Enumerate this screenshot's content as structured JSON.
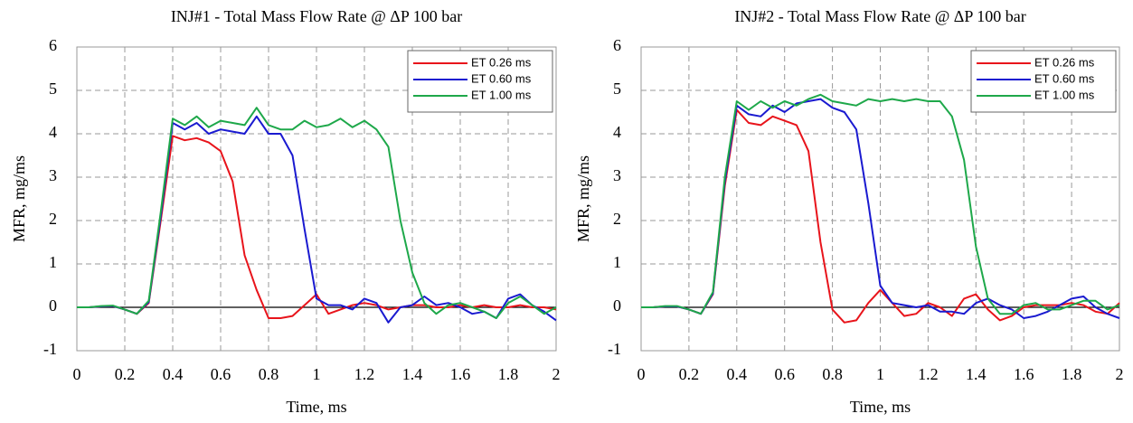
{
  "chart_data": [
    {
      "type": "line",
      "title": "INJ#1 - Total Mass Flow Rate @ ΔP 100 bar",
      "x_label": "Time, ms",
      "y_label": "MFR, mg/ms",
      "x": [
        0,
        0.05,
        0.1,
        0.15,
        0.2,
        0.25,
        0.3,
        0.35,
        0.4,
        0.45,
        0.5,
        0.55,
        0.6,
        0.65,
        0.7,
        0.75,
        0.8,
        0.85,
        0.9,
        0.95,
        1,
        1.05,
        1.1,
        1.15,
        1.2,
        1.25,
        1.3,
        1.35,
        1.4,
        1.45,
        1.5,
        1.55,
        1.6,
        1.65,
        1.7,
        1.75,
        1.8,
        1.85,
        1.9,
        1.95,
        2
      ],
      "series": [
        {
          "name": "ET 0.26 ms",
          "color": "#e8141b",
          "values": [
            0,
            0,
            0.02,
            0.03,
            -0.05,
            -0.15,
            0.1,
            2.0,
            3.95,
            3.85,
            3.9,
            3.8,
            3.6,
            2.9,
            1.2,
            0.4,
            -0.25,
            -0.25,
            -0.2,
            0.05,
            0.3,
            -0.15,
            -0.05,
            0.05,
            0.1,
            0.05,
            -0.05,
            0,
            0.05,
            0.05,
            0,
            0,
            0.05,
            0,
            0.05,
            0,
            0,
            0.05,
            0,
            0,
            -0.05
          ]
        },
        {
          "name": "ET 0.60 ms",
          "color": "#1a1ad0",
          "values": [
            0,
            0,
            0.02,
            0.03,
            -0.05,
            -0.15,
            0.12,
            2.1,
            4.25,
            4.1,
            4.25,
            4.0,
            4.1,
            4.05,
            4.0,
            4.4,
            4.0,
            4.0,
            3.5,
            1.8,
            0.2,
            0.05,
            0.05,
            -0.05,
            0.2,
            0.1,
            -0.35,
            0,
            0.05,
            0.25,
            0.05,
            0.1,
            0,
            -0.15,
            -0.1,
            -0.25,
            0.2,
            0.3,
            0.05,
            -0.1,
            -0.3
          ]
        },
        {
          "name": "ET 1.00 ms",
          "color": "#1ea84a",
          "values": [
            0,
            0,
            0.03,
            0.04,
            -0.05,
            -0.15,
            0.15,
            2.2,
            4.35,
            4.2,
            4.4,
            4.15,
            4.3,
            4.25,
            4.2,
            4.6,
            4.2,
            4.1,
            4.1,
            4.3,
            4.15,
            4.2,
            4.35,
            4.15,
            4.3,
            4.1,
            3.7,
            2.0,
            0.8,
            0.1,
            -0.15,
            0.05,
            0.1,
            0,
            -0.1,
            -0.25,
            0.1,
            0.25,
            0.05,
            -0.15,
            0
          ]
        }
      ],
      "xlim": [
        0,
        2
      ],
      "xticks": [
        0,
        0.2,
        0.4,
        0.6,
        0.8,
        1,
        1.2,
        1.4,
        1.6,
        1.8,
        2
      ],
      "ylim": [
        -1,
        6
      ],
      "yticks": [
        -1,
        0,
        1,
        2,
        3,
        4,
        5,
        6
      ],
      "grid": true,
      "legend": "upper right"
    },
    {
      "type": "line",
      "title": "INJ#2 - Total Mass Flow Rate @ ΔP 100 bar",
      "x_label": "Time, ms",
      "y_label": "MFR, mg/ms",
      "x": [
        0,
        0.05,
        0.1,
        0.15,
        0.2,
        0.25,
        0.3,
        0.35,
        0.4,
        0.45,
        0.5,
        0.55,
        0.6,
        0.65,
        0.7,
        0.75,
        0.8,
        0.85,
        0.9,
        0.95,
        1,
        1.05,
        1.1,
        1.15,
        1.2,
        1.25,
        1.3,
        1.35,
        1.4,
        1.45,
        1.5,
        1.55,
        1.6,
        1.65,
        1.7,
        1.75,
        1.8,
        1.85,
        1.9,
        1.95,
        2
      ],
      "series": [
        {
          "name": "ET 0.26 ms",
          "color": "#e8141b",
          "values": [
            0,
            0,
            0.02,
            0.02,
            -0.05,
            -0.15,
            0.3,
            2.8,
            4.55,
            4.25,
            4.2,
            4.4,
            4.3,
            4.2,
            3.6,
            1.5,
            -0.05,
            -0.35,
            -0.3,
            0.1,
            0.4,
            0.1,
            -0.2,
            -0.15,
            0.1,
            0,
            -0.2,
            0.2,
            0.3,
            -0.05,
            -0.3,
            -0.2,
            0,
            0.05,
            0.05,
            0.05,
            0.1,
            0.05,
            -0.1,
            -0.15,
            0.1
          ]
        },
        {
          "name": "ET 0.60 ms",
          "color": "#1a1ad0",
          "values": [
            0,
            0,
            0.02,
            0.02,
            -0.05,
            -0.15,
            0.32,
            2.9,
            4.65,
            4.45,
            4.4,
            4.65,
            4.5,
            4.7,
            4.75,
            4.8,
            4.6,
            4.5,
            4.1,
            2.4,
            0.5,
            0.1,
            0.05,
            0,
            0.05,
            -0.1,
            -0.1,
            -0.15,
            0.1,
            0.2,
            0.05,
            -0.05,
            -0.25,
            -0.2,
            -0.1,
            0.05,
            0.2,
            0.25,
            0,
            -0.15,
            -0.25
          ]
        },
        {
          "name": "ET 1.00 ms",
          "color": "#1ea84a",
          "values": [
            0,
            0,
            0.03,
            0.03,
            -0.05,
            -0.15,
            0.35,
            3.0,
            4.75,
            4.55,
            4.75,
            4.6,
            4.75,
            4.65,
            4.8,
            4.9,
            4.75,
            4.7,
            4.65,
            4.8,
            4.75,
            4.8,
            4.75,
            4.8,
            4.75,
            4.75,
            4.4,
            3.4,
            1.4,
            0.2,
            -0.15,
            -0.15,
            0.05,
            0.1,
            -0.05,
            -0.05,
            0.05,
            0.15,
            0.15,
            -0.05,
            0.05
          ]
        }
      ],
      "xlim": [
        0,
        2
      ],
      "xticks": [
        0,
        0.2,
        0.4,
        0.6,
        0.8,
        1,
        1.2,
        1.4,
        1.6,
        1.8,
        2
      ],
      "ylim": [
        -1,
        6
      ],
      "yticks": [
        -1,
        0,
        1,
        2,
        3,
        4,
        5,
        6
      ],
      "grid": true,
      "legend": "upper right"
    }
  ]
}
